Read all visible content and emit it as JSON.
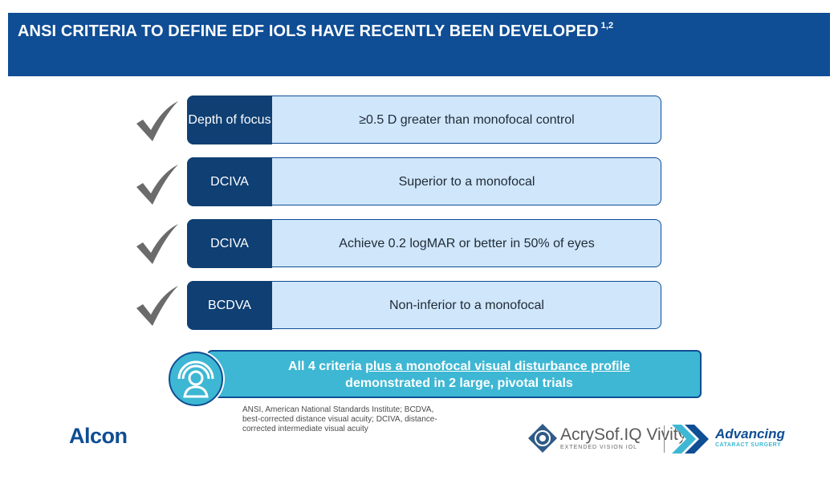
{
  "header": {
    "title": "ANSI CRITERIA TO DEFINE EDF IOLS HAVE RECENTLY BEEN DEVELOPED",
    "refs": "1,2"
  },
  "criteria": [
    {
      "tag": "Depth of focus",
      "text": "≥0.5 D greater than monofocal control"
    },
    {
      "tag": "DCIVA",
      "text": "Superior to a monofocal"
    },
    {
      "tag": "DCIVA",
      "text": "Achieve 0.2 logMAR or better in 50% of eyes"
    },
    {
      "tag": "BCDVA",
      "text": "Non-inferior to a monofocal"
    }
  ],
  "banner": {
    "lead": "All 4 criteria",
    "underlined": "plus a monofocal visual disturbance profile",
    "line2": "demonstrated in 2 large, pivotal trials"
  },
  "footnote": "ANSI, American National Standards Institute; BCDVA, best-corrected distance visual acuity; DCIVA, distance-corrected intermediate visual acuity",
  "logos": {
    "alcon": "Alcon",
    "acrysof_name": "AcrySof.IQ Vivity.",
    "acrysof_sub": "EXTENDED VISION IOL",
    "advancing": "Advancing",
    "advancing_sub": "CATARACT SURGERY"
  },
  "colors": {
    "header": "#0f4d94",
    "tag": "#0f3f73",
    "pill": "#cfe6fb",
    "banner": "#3db7d3",
    "check": "#6b6b6b"
  },
  "icons": [
    "checkmark-icon",
    "person-broadcast-icon"
  ]
}
